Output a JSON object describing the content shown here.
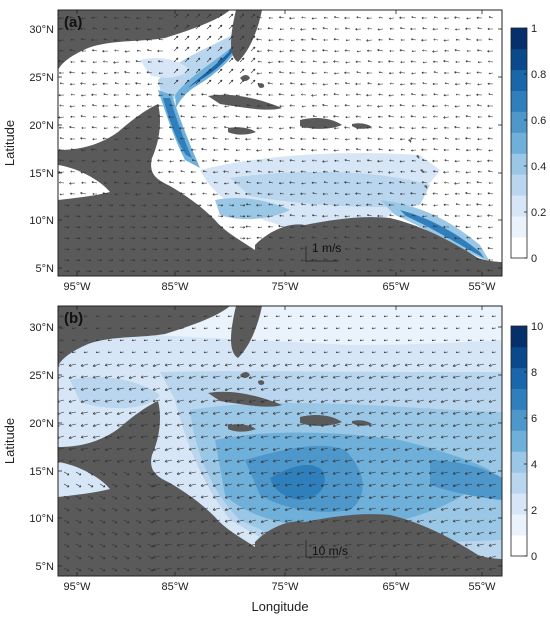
{
  "figure": {
    "xlabel": "Longitude",
    "ylabel": "Latitude",
    "x_ticks": [
      "95°W",
      "85°W",
      "75°W",
      "65°W",
      "55°W"
    ],
    "y_ticks": [
      "30°N",
      "25°N",
      "20°N",
      "15°N",
      "10°N",
      "5°N"
    ]
  },
  "panels": [
    {
      "label": "(a)",
      "scale_label": "1 m/s",
      "colorbar": {
        "ticks": [
          "1",
          "0.8",
          "0.6",
          "0.4",
          "0.2",
          "0"
        ],
        "range": [
          0,
          1
        ]
      },
      "colors": [
        "#ffffff",
        "#eaf2fb",
        "#d6e6f6",
        "#bad6ee",
        "#9ac7e6",
        "#6fb0da",
        "#4d97cb",
        "#2f7fbd",
        "#1a66aa",
        "#0a4a8c",
        "#05306b"
      ]
    },
    {
      "label": "(b)",
      "scale_label": "10 m/s",
      "colorbar": {
        "ticks": [
          "10",
          "8",
          "6",
          "4",
          "2",
          "0"
        ],
        "range": [
          0,
          10
        ]
      },
      "colors": [
        "#ffffff",
        "#eaf2fb",
        "#d6e6f6",
        "#bad6ee",
        "#9ac7e6",
        "#6fb0da",
        "#4d97cb",
        "#2f7fbd",
        "#1a66aa",
        "#0a4a8c",
        "#05306b"
      ]
    }
  ],
  "land_color": "#5a5a5a"
}
